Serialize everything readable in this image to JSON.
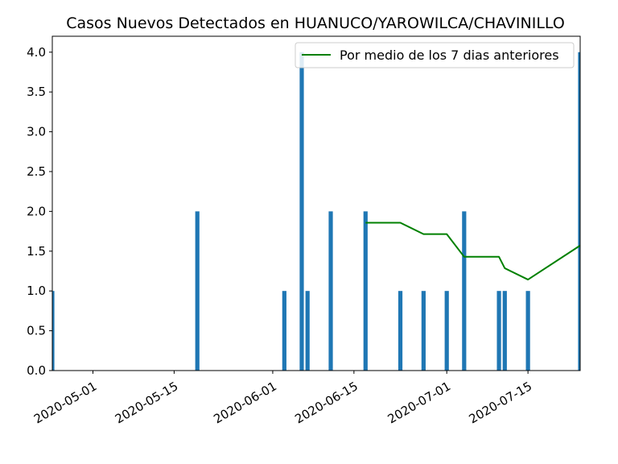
{
  "chart_data": {
    "type": "bar",
    "title": "Casos Nuevos Detectados en HUANUCO/YAROWILCA/CHAVINILLO",
    "xlabel": "",
    "ylabel": "",
    "x_range": [
      "2020-04-24",
      "2020-07-24"
    ],
    "ylim": [
      0,
      4.2
    ],
    "y_ticks": [
      0.0,
      0.5,
      1.0,
      1.5,
      2.0,
      2.5,
      3.0,
      3.5,
      4.0
    ],
    "y_tick_labels": [
      "0.0",
      "0.5",
      "1.0",
      "1.5",
      "2.0",
      "2.5",
      "3.0",
      "3.5",
      "4.0"
    ],
    "x_ticks": [
      "2020-05-01",
      "2020-05-15",
      "2020-06-01",
      "2020-06-15",
      "2020-07-01",
      "2020-07-15"
    ],
    "x_tick_labels": [
      "2020-05-01",
      "2020-05-15",
      "2020-06-01",
      "2020-06-15",
      "2020-07-01",
      "2020-07-15"
    ],
    "grid": false,
    "legend_position": "top-right",
    "series": [
      {
        "type": "bar",
        "color": "#1f77b4",
        "points": [
          {
            "x": "2020-04-24",
            "y": 1
          },
          {
            "x": "2020-05-19",
            "y": 2
          },
          {
            "x": "2020-06-03",
            "y": 1
          },
          {
            "x": "2020-06-06",
            "y": 4
          },
          {
            "x": "2020-06-07",
            "y": 1
          },
          {
            "x": "2020-06-11",
            "y": 2
          },
          {
            "x": "2020-06-17",
            "y": 2
          },
          {
            "x": "2020-06-23",
            "y": 1
          },
          {
            "x": "2020-06-27",
            "y": 1
          },
          {
            "x": "2020-07-01",
            "y": 1
          },
          {
            "x": "2020-07-04",
            "y": 2
          },
          {
            "x": "2020-07-10",
            "y": 1
          },
          {
            "x": "2020-07-11",
            "y": 1
          },
          {
            "x": "2020-07-15",
            "y": 1
          },
          {
            "x": "2020-07-24",
            "y": 4
          }
        ]
      },
      {
        "type": "line",
        "name": "Por medio de los 7 dias anteriores",
        "color": "#008000",
        "points": [
          {
            "x": "2020-06-17",
            "y": 1.857
          },
          {
            "x": "2020-06-23",
            "y": 1.857
          },
          {
            "x": "2020-06-27",
            "y": 1.714
          },
          {
            "x": "2020-07-01",
            "y": 1.714
          },
          {
            "x": "2020-07-04",
            "y": 1.429
          },
          {
            "x": "2020-07-10",
            "y": 1.429
          },
          {
            "x": "2020-07-11",
            "y": 1.286
          },
          {
            "x": "2020-07-15",
            "y": 1.143
          },
          {
            "x": "2020-07-24",
            "y": 1.571
          }
        ]
      }
    ]
  }
}
